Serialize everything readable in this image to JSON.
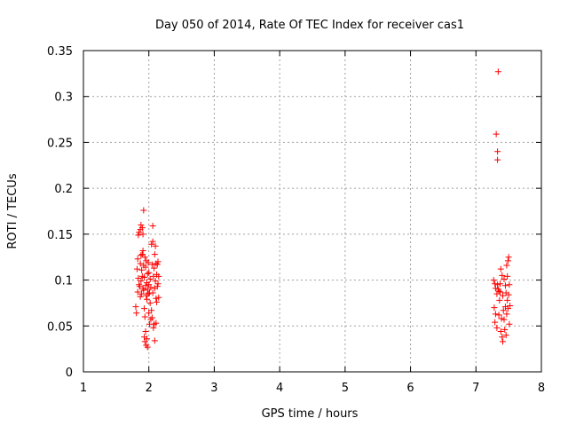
{
  "chart_data": {
    "type": "scatter",
    "title": "Day 050 of 2014, Rate Of TEC Index for receiver cas1",
    "xlabel": "GPS time / hours",
    "ylabel": "ROTI / TECUs",
    "xlim": [
      1,
      8
    ],
    "ylim": [
      0,
      0.35
    ],
    "xticks": [
      1,
      2,
      3,
      4,
      5,
      6,
      7,
      8
    ],
    "xtick_labels": [
      "1",
      "2",
      "3",
      "4",
      "5",
      "6",
      "7",
      "8"
    ],
    "yticks": [
      0,
      0.05,
      0.1,
      0.15,
      0.2,
      0.25,
      0.3,
      0.35
    ],
    "ytick_labels": [
      "0",
      "0.05",
      "0.1",
      "0.15",
      "0.2",
      "0.25",
      "0.3",
      "0.35"
    ],
    "grid": true,
    "marker": "+",
    "marker_color": "#ff0000",
    "series": [
      {
        "name": "cas1",
        "points": [
          [
            1.8,
            0.071
          ],
          [
            1.81,
            0.064
          ],
          [
            1.82,
            0.112
          ],
          [
            1.83,
            0.123
          ],
          [
            1.83,
            0.087
          ],
          [
            1.84,
            0.149
          ],
          [
            1.84,
            0.102
          ],
          [
            1.85,
            0.095
          ],
          [
            1.85,
            0.152
          ],
          [
            1.86,
            0.093
          ],
          [
            1.87,
            0.155
          ],
          [
            1.87,
            0.118
          ],
          [
            1.87,
            0.082
          ],
          [
            1.88,
            0.127
          ],
          [
            1.88,
            0.099
          ],
          [
            1.88,
            0.16
          ],
          [
            1.89,
            0.085
          ],
          [
            1.89,
            0.111
          ],
          [
            1.9,
            0.157
          ],
          [
            1.9,
            0.128
          ],
          [
            1.9,
            0.104
          ],
          [
            1.91,
            0.091
          ],
          [
            1.91,
            0.132
          ],
          [
            1.91,
            0.15
          ],
          [
            1.92,
            0.176
          ],
          [
            1.92,
            0.116
          ],
          [
            1.92,
            0.089
          ],
          [
            1.93,
            0.038
          ],
          [
            1.93,
            0.069
          ],
          [
            1.93,
            0.103
          ],
          [
            1.94,
            0.033
          ],
          [
            1.94,
            0.125
          ],
          [
            1.94,
            0.06
          ],
          [
            1.95,
            0.094
          ],
          [
            1.95,
            0.044
          ],
          [
            1.95,
            0.114
          ],
          [
            1.96,
            0.029
          ],
          [
            1.96,
            0.083
          ],
          [
            1.96,
            0.121
          ],
          [
            1.97,
            0.097
          ],
          [
            1.97,
            0.079
          ],
          [
            1.97,
            0.036
          ],
          [
            1.98,
            0.107
          ],
          [
            1.98,
            0.09
          ],
          [
            1.98,
            0.027
          ],
          [
            1.99,
            0.119
          ],
          [
            1.99,
            0.085
          ],
          [
            2.0,
            0.108
          ],
          [
            2.0,
            0.064
          ],
          [
            2.0,
            0.095
          ],
          [
            2.01,
            0.052
          ],
          [
            2.01,
            0.086
          ],
          [
            2.02,
            0.075
          ],
          [
            2.02,
            0.101
          ],
          [
            2.03,
            0.057
          ],
          [
            2.03,
            0.092
          ],
          [
            2.04,
            0.139
          ],
          [
            2.04,
            0.067
          ],
          [
            2.05,
            0.117
          ],
          [
            2.05,
            0.059
          ],
          [
            2.06,
            0.159
          ],
          [
            2.06,
            0.142
          ],
          [
            2.06,
            0.086
          ],
          [
            2.07,
            0.048
          ],
          [
            2.07,
            0.104
          ],
          [
            2.08,
            0.113
          ],
          [
            2.08,
            0.052
          ],
          [
            2.09,
            0.128
          ],
          [
            2.09,
            0.091
          ],
          [
            2.09,
            0.034
          ],
          [
            2.1,
            0.137
          ],
          [
            2.1,
            0.099
          ],
          [
            2.11,
            0.08
          ],
          [
            2.11,
            0.118
          ],
          [
            2.11,
            0.053
          ],
          [
            2.12,
            0.076
          ],
          [
            2.12,
            0.106
          ],
          [
            2.13,
            0.093
          ],
          [
            2.13,
            0.117
          ],
          [
            2.14,
            0.12
          ],
          [
            2.14,
            0.096
          ],
          [
            2.15,
            0.081
          ],
          [
            2.15,
            0.104
          ],
          [
            7.27,
            0.1
          ],
          [
            7.28,
            0.07
          ],
          [
            7.29,
            0.054
          ],
          [
            7.29,
            0.096
          ],
          [
            7.3,
            0.091
          ],
          [
            7.3,
            0.063
          ],
          [
            7.31,
            0.259
          ],
          [
            7.32,
            0.048
          ],
          [
            7.32,
            0.085
          ],
          [
            7.33,
            0.24
          ],
          [
            7.33,
            0.231
          ],
          [
            7.33,
            0.095
          ],
          [
            7.34,
            0.327
          ],
          [
            7.34,
            0.09
          ],
          [
            7.35,
            0.088
          ],
          [
            7.35,
            0.062
          ],
          [
            7.36,
            0.078
          ],
          [
            7.37,
            0.096
          ],
          [
            7.37,
            0.087
          ],
          [
            7.38,
            0.044
          ],
          [
            7.38,
            0.112
          ],
          [
            7.39,
            0.058
          ],
          [
            7.4,
            0.105
          ],
          [
            7.4,
            0.038
          ],
          [
            7.41,
            0.083
          ],
          [
            7.41,
            0.033
          ],
          [
            7.42,
            0.067
          ],
          [
            7.43,
            0.101
          ],
          [
            7.43,
            0.057
          ],
          [
            7.44,
            0.046
          ],
          [
            7.45,
            0.094
          ],
          [
            7.45,
            0.071
          ],
          [
            7.46,
            0.04
          ],
          [
            7.46,
            0.086
          ],
          [
            7.47,
            0.116
          ],
          [
            7.47,
            0.063
          ],
          [
            7.48,
            0.078
          ],
          [
            7.48,
            0.104
          ],
          [
            7.49,
            0.121
          ],
          [
            7.49,
            0.069
          ],
          [
            7.5,
            0.125
          ],
          [
            7.5,
            0.084
          ],
          [
            7.51,
            0.095
          ],
          [
            7.51,
            0.052
          ],
          [
            7.52,
            0.072
          ]
        ]
      }
    ]
  }
}
